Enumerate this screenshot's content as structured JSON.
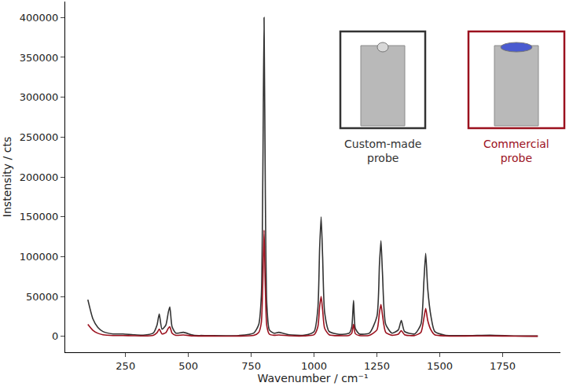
{
  "chart_data": {
    "type": "line",
    "x_label": "Wavenumber / cm⁻¹",
    "y_label": "Instensity / cts",
    "x": [
      100,
      120,
      140,
      160,
      200,
      240,
      280,
      320,
      360,
      375,
      384,
      395,
      410,
      420,
      426,
      435,
      450,
      480,
      520,
      600,
      700,
      760,
      780,
      790,
      796,
      801,
      806,
      812,
      822,
      840,
      860,
      900,
      960,
      1000,
      1015,
      1022,
      1028,
      1034,
      1042,
      1060,
      1100,
      1140,
      1150,
      1157,
      1164,
      1180,
      1220,
      1250,
      1260,
      1266,
      1272,
      1285,
      1310,
      1335,
      1347,
      1360,
      1400,
      1425,
      1437,
      1444,
      1452,
      1465,
      1480,
      1520,
      1600,
      1700,
      1800,
      1890
    ],
    "series": [
      {
        "name": "Custom-made probe",
        "color": "#333333",
        "values": [
          46000,
          22000,
          11000,
          6000,
          3000,
          3000,
          2000,
          1500,
          4000,
          14000,
          28000,
          9000,
          14000,
          30000,
          37000,
          12000,
          4000,
          5000,
          1500,
          800,
          1000,
          4000,
          15000,
          50000,
          200000,
          400000,
          180000,
          40000,
          8000,
          4000,
          5000,
          2000,
          1500,
          6000,
          35000,
          110000,
          150000,
          100000,
          30000,
          6000,
          2500,
          4000,
          12000,
          45000,
          10000,
          3000,
          4000,
          25000,
          90000,
          120000,
          80000,
          15000,
          4000,
          8000,
          20000,
          6000,
          3000,
          15000,
          70000,
          104000,
          60000,
          25000,
          6000,
          1500,
          800,
          1500,
          500,
          300
        ]
      },
      {
        "name": "Commercial probe",
        "color": "#9b111e",
        "values": [
          15000,
          7500,
          3800,
          2000,
          1000,
          1000,
          700,
          500,
          1300,
          4500,
          9000,
          3000,
          4500,
          10000,
          12000,
          4000,
          1300,
          1700,
          500,
          300,
          300,
          1300,
          5000,
          17000,
          67000,
          133000,
          60000,
          13000,
          2700,
          1300,
          1700,
          700,
          500,
          2000,
          12000,
          37000,
          50000,
          33000,
          10000,
          2000,
          800,
          1300,
          4000,
          15000,
          3300,
          1000,
          1300,
          8000,
          30000,
          40000,
          27000,
          5000,
          1300,
          2700,
          7000,
          2000,
          1000,
          5000,
          23000,
          35000,
          20000,
          8000,
          2000,
          500,
          300,
          500,
          200,
          100
        ]
      }
    ],
    "xlim": [
      10,
      1980
    ],
    "xticks": [
      250,
      500,
      750,
      1000,
      1250,
      1500,
      1750
    ],
    "ylim": [
      -20000,
      420000
    ],
    "yticks": [
      0,
      50000,
      100000,
      150000,
      200000,
      250000,
      300000,
      350000,
      400000
    ],
    "grid": false
  }
}
